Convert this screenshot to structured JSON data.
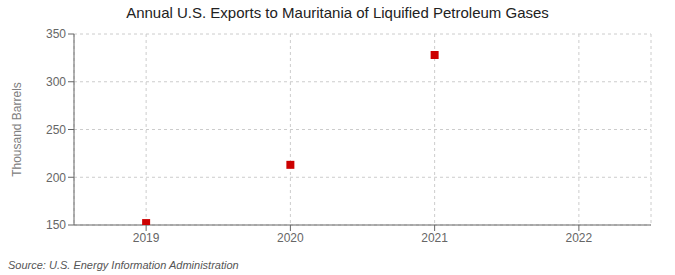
{
  "chart_data": {
    "type": "scatter",
    "title": "Annual U.S. Exports to Mauritania of Liquified Petroleum Gases",
    "y_label": "Thousand Barrels",
    "annotations": [
      "Source: U.S. Energy Information Administration"
    ],
    "x": [
      2019,
      2020,
      2021
    ],
    "values": [
      152,
      213,
      328
    ],
    "color": "#cc0000",
    "marker": "square",
    "xlim": [
      2018.5,
      2022.5
    ],
    "xticks": [
      2019,
      2020,
      2021,
      2022
    ],
    "ylim": [
      150,
      350
    ],
    "yticks": [
      150,
      200,
      250,
      300,
      350
    ],
    "grid": true
  }
}
